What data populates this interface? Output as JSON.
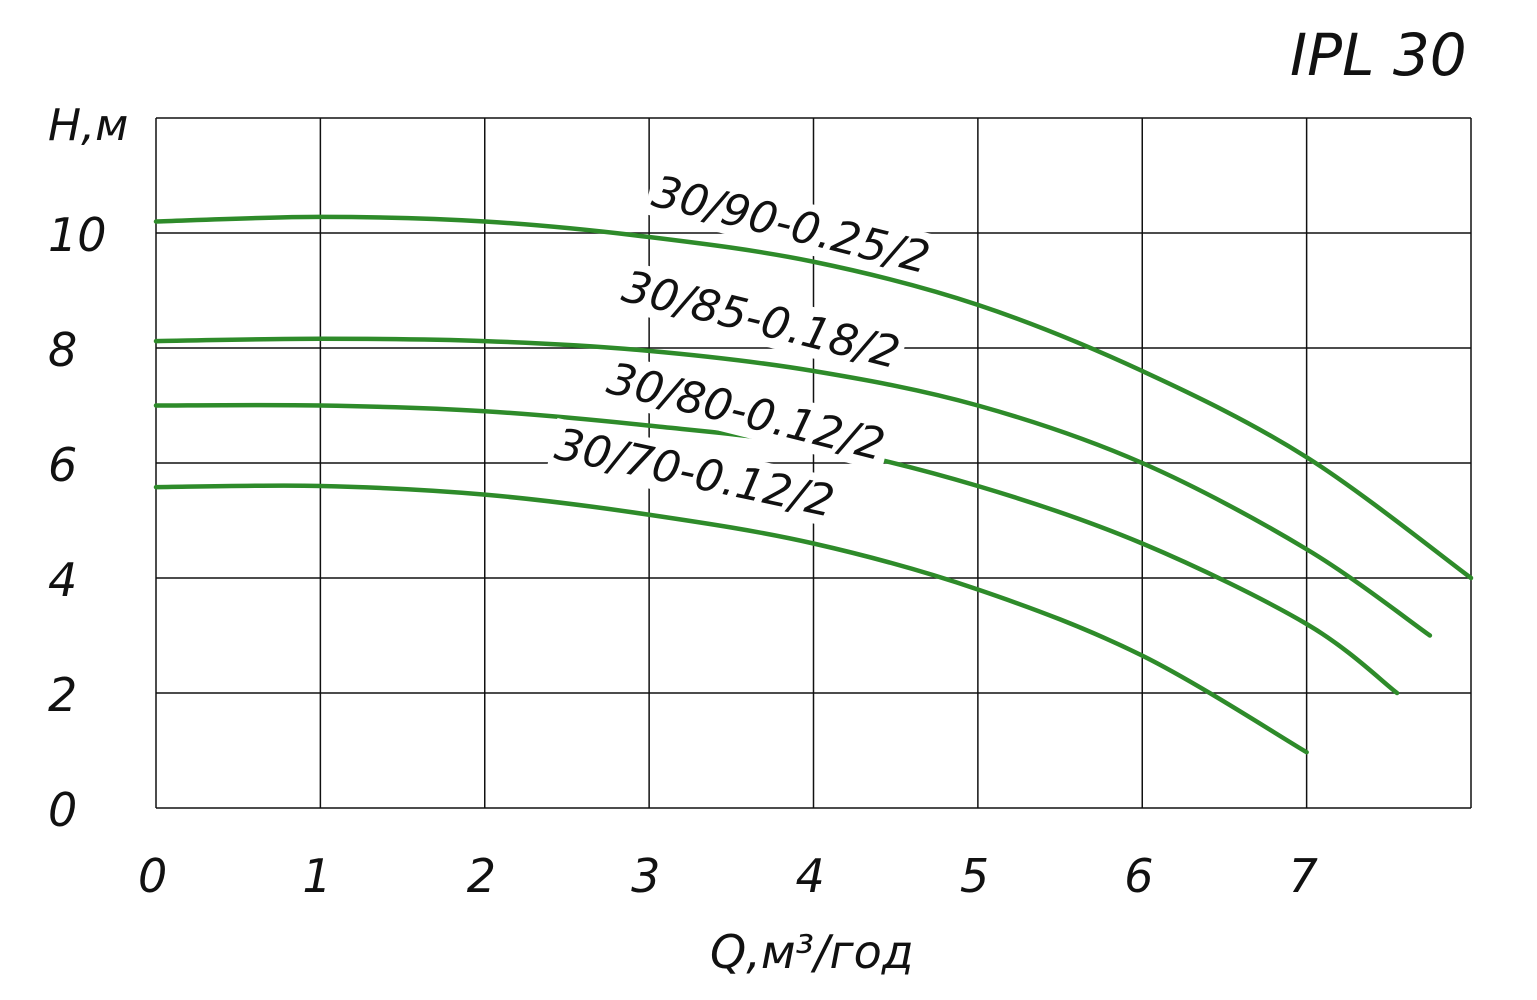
{
  "chart_data": {
    "type": "line",
    "title": "IPL 30",
    "xlabel": "Q,м³/год",
    "xlabel_parts": {
      "base": "Qм",
      "sup": "3",
      "rest": "/год"
    },
    "ylabel": "Н,м",
    "xlim": [
      0,
      8
    ],
    "ylim": [
      0,
      12
    ],
    "x_ticks": [
      "0",
      "1",
      "2",
      "3",
      "4",
      "5",
      "6",
      "7"
    ],
    "y_ticks": [
      "0",
      "2",
      "4",
      "6",
      "8",
      "10"
    ],
    "grid": true,
    "line_color": "#2e8b2a",
    "series": [
      {
        "name": "30/90-0.25/2",
        "x": [
          0,
          1,
          2,
          3,
          4,
          5,
          6,
          7,
          8
        ],
        "y": [
          10.2,
          10.28,
          10.2,
          9.93,
          9.5,
          8.75,
          7.6,
          6.1,
          4.0
        ]
      },
      {
        "name": "30/85-0.18/2",
        "x": [
          0,
          1,
          2,
          3,
          4,
          5,
          6,
          7,
          7.75
        ],
        "y": [
          8.12,
          8.16,
          8.12,
          7.95,
          7.6,
          7.0,
          6.0,
          4.5,
          3.0
        ]
      },
      {
        "name": "30/80-0.12/2",
        "x": [
          0,
          1,
          2,
          3,
          4,
          5,
          6,
          7,
          7.55
        ],
        "y": [
          7.0,
          7.0,
          6.9,
          6.65,
          6.3,
          5.6,
          4.6,
          3.2,
          2.0
        ]
      },
      {
        "name": "30/70-0.12/2",
        "x": [
          0,
          1,
          2,
          3,
          4,
          5,
          6,
          7
        ],
        "y": [
          5.58,
          5.6,
          5.45,
          5.1,
          4.6,
          3.8,
          2.65,
          0.97
        ]
      }
    ]
  }
}
